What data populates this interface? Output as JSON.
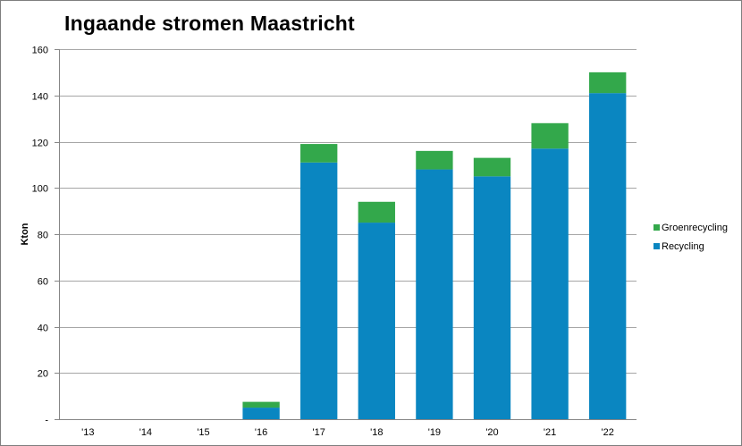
{
  "chart_data": {
    "type": "bar",
    "stacked": true,
    "title": "Ingaande stromen Maastricht",
    "xlabel": "",
    "ylabel": "Kton",
    "categories": [
      "'13",
      "'14",
      "'15",
      "'16",
      "'17",
      "'18",
      "'19",
      "'20",
      "'21",
      "'22"
    ],
    "ylim": [
      0,
      160
    ],
    "yticks": [
      0,
      20,
      40,
      60,
      80,
      100,
      120,
      140,
      160
    ],
    "ytick_labels": [
      "-",
      "20",
      "40",
      "60",
      "80",
      "100",
      "120",
      "140",
      "160"
    ],
    "grid": true,
    "legend_position": "right",
    "series": [
      {
        "name": "Recycling",
        "color": "#0a86c1",
        "values": [
          0,
          0,
          0,
          5,
          111,
          85,
          108,
          105,
          117,
          141
        ]
      },
      {
        "name": "Groenrecycling",
        "color": "#33a84b",
        "values": [
          0,
          0,
          0,
          2.5,
          8,
          9,
          8,
          8,
          11,
          9
        ]
      }
    ],
    "legend_order": [
      "Groenrecycling",
      "Recycling"
    ]
  }
}
